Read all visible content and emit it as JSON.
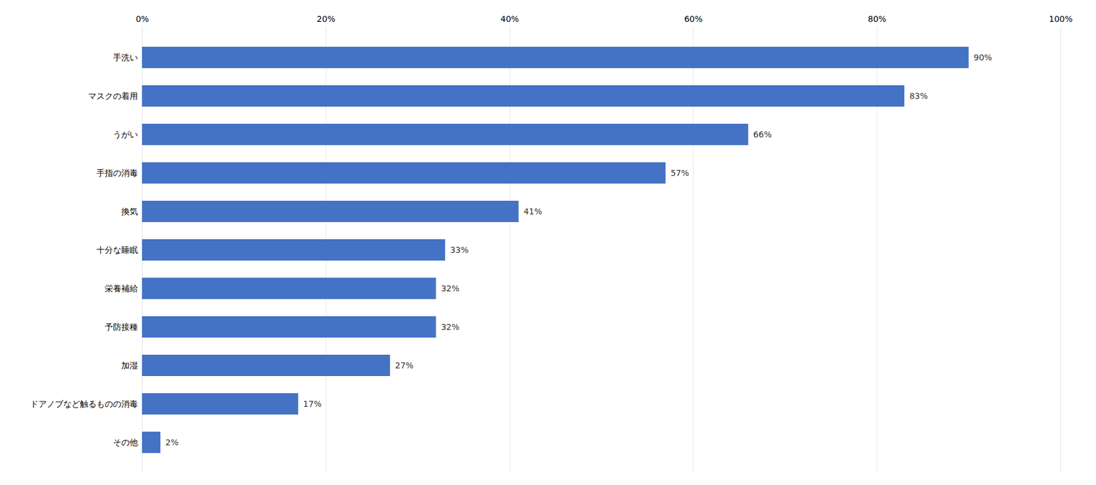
{
  "chart_data": {
    "type": "bar",
    "orientation": "horizontal",
    "categories": [
      "その他",
      "ドアノブなど触るものの消毒",
      "加湿",
      "予防接種",
      "栄養補給",
      "十分な睡眠",
      "換気",
      "手指の消毒",
      "うがい",
      "マスクの着用",
      "手洗い"
    ],
    "values": [
      2,
      17,
      27,
      32,
      32,
      33,
      41,
      57,
      66,
      83,
      90
    ],
    "value_labels": [
      "2%",
      "17%",
      "27%",
      "32%",
      "32%",
      "33%",
      "41%",
      "57%",
      "66%",
      "83%",
      "90%"
    ],
    "data_labels": true,
    "color": "#4472C4",
    "xlim": [
      0,
      100
    ],
    "xticks": [
      {
        "value": 0,
        "label": "0%"
      },
      {
        "value": 20,
        "label": "20%"
      },
      {
        "value": 40,
        "label": "40%"
      },
      {
        "value": 60,
        "label": "60%"
      },
      {
        "value": 80,
        "label": "80%"
      },
      {
        "value": 100,
        "label": "100%"
      }
    ],
    "grid": true
  }
}
